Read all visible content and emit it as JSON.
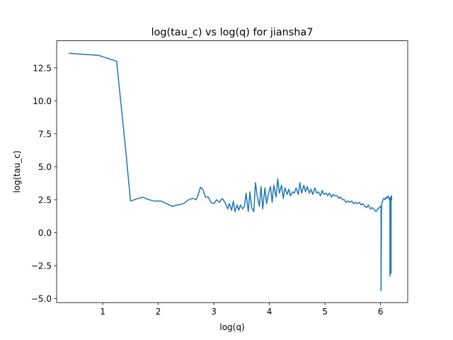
{
  "chart_data": {
    "type": "line",
    "title": "log(tau_c) vs log(q) for jiansha7",
    "xlabel": "log(q)",
    "ylabel": "log(tau_c)",
    "xlim": [
      0.17,
      6.49
    ],
    "ylim": [
      -5.3,
      14.55
    ],
    "xticks": [
      1,
      2,
      3,
      4,
      5,
      6
    ],
    "xtick_labels": [
      "1",
      "2",
      "3",
      "4",
      "5",
      "6"
    ],
    "yticks": [
      -5.0,
      -2.5,
      0.0,
      2.5,
      5.0,
      7.5,
      10.0,
      12.5
    ],
    "ytick_labels": [
      "−5.0",
      "−2.5",
      "0.0",
      "2.5",
      "5.0",
      "7.5",
      "10.0",
      "12.5"
    ],
    "grid": false,
    "series": [
      {
        "color": "#1f77b4",
        "x": [
          0.4,
          0.92,
          1.25,
          1.42,
          1.5,
          1.6,
          1.72,
          1.8,
          1.92,
          2.05,
          2.15,
          2.25,
          2.35,
          2.45,
          2.55,
          2.62,
          2.68,
          2.72,
          2.76,
          2.8,
          2.85,
          2.9,
          2.95,
          3.0,
          3.05,
          3.1,
          3.15,
          3.2,
          3.25,
          3.28,
          3.32,
          3.35,
          3.38,
          3.42,
          3.45,
          3.48,
          3.52,
          3.55,
          3.58,
          3.62,
          3.65,
          3.68,
          3.72,
          3.75,
          3.78,
          3.82,
          3.85,
          3.88,
          3.92,
          3.95,
          3.98,
          4.02,
          4.05,
          4.08,
          4.12,
          4.15,
          4.18,
          4.22,
          4.25,
          4.28,
          4.32,
          4.35,
          4.38,
          4.42,
          4.45,
          4.48,
          4.52,
          4.55,
          4.58,
          4.62,
          4.65,
          4.68,
          4.72,
          4.75,
          4.78,
          4.82,
          4.85,
          4.88,
          4.92,
          4.95,
          4.98,
          5.02,
          5.05,
          5.08,
          5.12,
          5.15,
          5.18,
          5.22,
          5.25,
          5.28,
          5.32,
          5.35,
          5.38,
          5.42,
          5.45,
          5.48,
          5.52,
          5.55,
          5.58,
          5.62,
          5.65,
          5.68,
          5.72,
          5.75,
          5.78,
          5.82,
          5.85,
          5.88,
          5.92,
          5.95,
          5.98,
          6.0,
          6.01,
          6.01,
          6.02,
          6.04,
          6.06,
          6.08,
          6.1,
          6.12,
          6.14,
          6.16,
          6.17,
          6.17,
          6.18,
          6.19,
          6.19,
          6.2,
          6.2
        ],
        "y": [
          13.6,
          13.45,
          13.0,
          6.0,
          2.4,
          2.55,
          2.7,
          2.55,
          2.4,
          2.4,
          2.2,
          2.0,
          2.1,
          2.2,
          2.5,
          2.6,
          2.5,
          2.9,
          3.45,
          3.3,
          2.7,
          2.7,
          2.3,
          2.2,
          2.5,
          2.3,
          2.6,
          2.3,
          1.8,
          2.2,
          1.7,
          2.4,
          1.6,
          2.1,
          1.7,
          2.1,
          1.8,
          2.0,
          3.0,
          1.6,
          3.1,
          1.9,
          1.6,
          3.8,
          2.8,
          2.0,
          3.5,
          1.8,
          3.4,
          2.2,
          2.9,
          3.5,
          2.3,
          3.6,
          2.7,
          4.1,
          3.0,
          3.6,
          2.6,
          3.4,
          2.9,
          3.3,
          2.8,
          3.1,
          3.0,
          3.4,
          2.9,
          3.8,
          3.0,
          3.6,
          3.1,
          3.5,
          3.0,
          3.3,
          2.9,
          3.4,
          3.0,
          3.1,
          2.8,
          3.2,
          2.9,
          3.0,
          2.8,
          3.0,
          2.7,
          2.9,
          2.8,
          2.8,
          2.6,
          2.7,
          2.5,
          2.5,
          2.3,
          2.4,
          2.3,
          2.4,
          2.2,
          2.3,
          2.2,
          2.3,
          2.1,
          2.2,
          2.0,
          1.9,
          2.1,
          1.8,
          1.9,
          1.8,
          1.6,
          1.8,
          1.9,
          2.0,
          2.0,
          -4.4,
          2.2,
          2.4,
          2.6,
          2.5,
          2.7,
          2.6,
          2.8,
          2.5,
          2.6,
          -3.3,
          2.7,
          -3.1,
          2.6,
          2.8,
          2.5
        ]
      }
    ]
  }
}
